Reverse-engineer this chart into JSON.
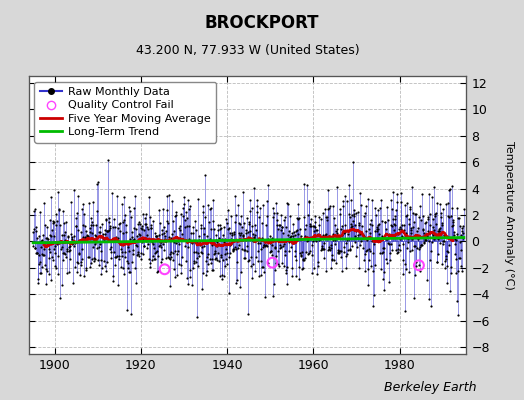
{
  "title": "BROCKPORT",
  "subtitle": "43.200 N, 77.933 W (United States)",
  "ylabel": "Temperature Anomaly (°C)",
  "watermark": "Berkeley Earth",
  "year_start": 1895,
  "year_end": 1995,
  "ylim": [
    -8.5,
    12.5
  ],
  "yticks": [
    -8,
    -6,
    -4,
    -2,
    0,
    2,
    4,
    6,
    8,
    10,
    12
  ],
  "xticks": [
    1900,
    1920,
    1940,
    1960,
    1980
  ],
  "bg_color": "#d8d8d8",
  "plot_bg_color": "#ffffff",
  "raw_line_color": "#3333cc",
  "raw_dot_color": "#000000",
  "moving_avg_color": "#cc0000",
  "trend_color": "#00bb00",
  "qc_fail_color": "#ff44ff",
  "grid_color": "#bbbbbb",
  "qc_fail_years": [
    1925.5,
    1950.5,
    1984.5
  ],
  "qc_fail_values": [
    -2.1,
    -1.6,
    -1.8
  ],
  "trend_slope": 0.004,
  "trend_intercept": -0.1,
  "random_seed": 42,
  "title_fontsize": 12,
  "subtitle_fontsize": 9,
  "axis_label_fontsize": 8,
  "tick_fontsize": 9,
  "legend_fontsize": 8,
  "watermark_fontsize": 9
}
